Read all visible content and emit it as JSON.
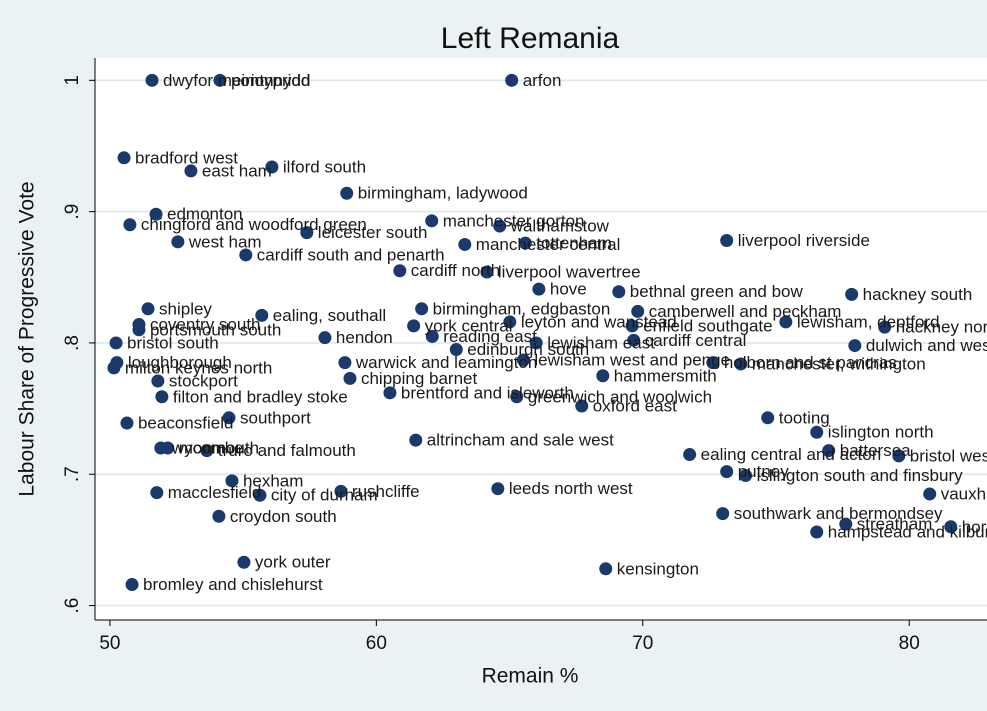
{
  "chart_data": {
    "type": "scatter",
    "title": "Left Remania",
    "x_label": "Remain %",
    "y_label": "Labour Share of Progressive Vote",
    "xlim": [
      49.44,
      82.92
    ],
    "ylim": [
      0.589,
      1.017
    ],
    "xticks": [
      50,
      60,
      70,
      80
    ],
    "yticks": [
      {
        "value": 0.6,
        "label": ".6"
      },
      {
        "value": 0.7,
        "label": ".7"
      },
      {
        "value": 0.8,
        "label": ".8"
      },
      {
        "value": 0.9,
        "label": ".9"
      },
      1
    ],
    "grid": true,
    "color": "#1a3a6b",
    "point_labels": [
      "dwyfor meirionnydd",
      "pontypridd",
      "arfon",
      "bradford west",
      "east ham",
      "ilford south",
      "birmingham, ladywood",
      "edmonton",
      "manchester gorton",
      "walthamstow",
      "chingford and woodford green",
      "leicester south",
      "liverpool riverside",
      "manchester central",
      "tottenham",
      "west ham",
      "cardiff south and penarth",
      "liverpool wavertree",
      "cardiff north",
      "hove",
      "bethnal green and bow",
      "hackney south",
      "camberwell and peckham",
      "lewisham, deptford",
      "hackney north",
      "dulwich and west norwood",
      "cardiff central",
      "enfield southgate",
      "leyton and wanstead",
      "manchester, withington",
      "holborn and st pancras",
      "hammersmith",
      "lewisham west and penge",
      "warwick and leamington",
      "chipping barnet",
      "brentford and isleworth",
      "greenwich and woolwich",
      "oxford east",
      "tooting",
      "islington north",
      "battersea",
      "bristol west",
      "ealing central and acton",
      "putney",
      "islington south and finsbury",
      "vauxhall",
      "southwark and bermondsey",
      "streatham",
      "hampstead and kilburn",
      "hornsey and wood green",
      "kensington",
      "leeds north west",
      "altrincham and sale west",
      "rushcliffe",
      "city of durham",
      "hexham",
      "macclesfield",
      "croydon south",
      "york outer",
      "bromley and chislehurst",
      "truro and falmouth",
      "wycombe",
      "monmouth",
      "beaconsfield",
      "southport",
      "filton and bradley stoke",
      "stockport",
      "milton keynes north",
      "loughborough",
      "bristol south",
      "portsmouth south",
      "coventry south",
      "hendon",
      "ealing, southall",
      "reading east",
      "york central",
      "shipley",
      "lewisham east",
      "edinburgh south",
      "birmingham, edgbaston"
    ],
    "x": [
      51.58,
      54.13,
      65.08,
      50.53,
      53.04,
      56.08,
      58.89,
      51.73,
      62.08,
      64.63,
      50.75,
      57.39,
      73.15,
      63.32,
      65.59,
      52.55,
      55.1,
      64.15,
      60.88,
      66.1,
      69.1,
      77.84,
      69.81,
      75.37,
      79.08,
      77.96,
      69.66,
      69.6,
      65.01,
      73.68,
      72.63,
      68.5,
      65.52,
      58.82,
      59.01,
      60.51,
      65.27,
      67.71,
      74.69,
      76.53,
      76.98,
      79.61,
      71.76,
      73.15,
      73.86,
      80.77,
      73.0,
      77.62,
      76.53,
      81.56,
      68.61,
      64.56,
      61.48,
      58.67,
      55.63,
      54.58,
      51.76,
      54.09,
      55.03,
      50.83,
      53.64,
      51.91,
      52.17,
      50.64,
      54.47,
      51.95,
      51.8,
      50.15,
      50.26,
      50.23,
      51.09,
      51.09,
      58.07,
      55.7,
      62.1,
      61.4,
      51.43,
      66.0,
      63.0,
      61.7
    ],
    "values": [
      1.0,
      1.0,
      1.0,
      0.941,
      0.931,
      0.934,
      0.914,
      0.898,
      0.893,
      0.889,
      0.89,
      0.884,
      0.878,
      0.875,
      0.876,
      0.877,
      0.867,
      0.854,
      0.855,
      0.841,
      0.839,
      0.837,
      0.824,
      0.816,
      0.812,
      0.798,
      0.802,
      0.813,
      0.816,
      0.784,
      0.785,
      0.775,
      0.787,
      0.785,
      0.773,
      0.762,
      0.759,
      0.752,
      0.743,
      0.732,
      0.718,
      0.714,
      0.715,
      0.702,
      0.699,
      0.685,
      0.67,
      0.662,
      0.656,
      0.66,
      0.628,
      0.689,
      0.726,
      0.687,
      0.684,
      0.695,
      0.686,
      0.668,
      0.633,
      0.616,
      0.718,
      0.72,
      0.72,
      0.739,
      0.743,
      0.759,
      0.771,
      0.781,
      0.785,
      0.8,
      0.81,
      0.814,
      0.804,
      0.821,
      0.805,
      0.813,
      0.826,
      0.8,
      0.795,
      0.826
    ]
  }
}
